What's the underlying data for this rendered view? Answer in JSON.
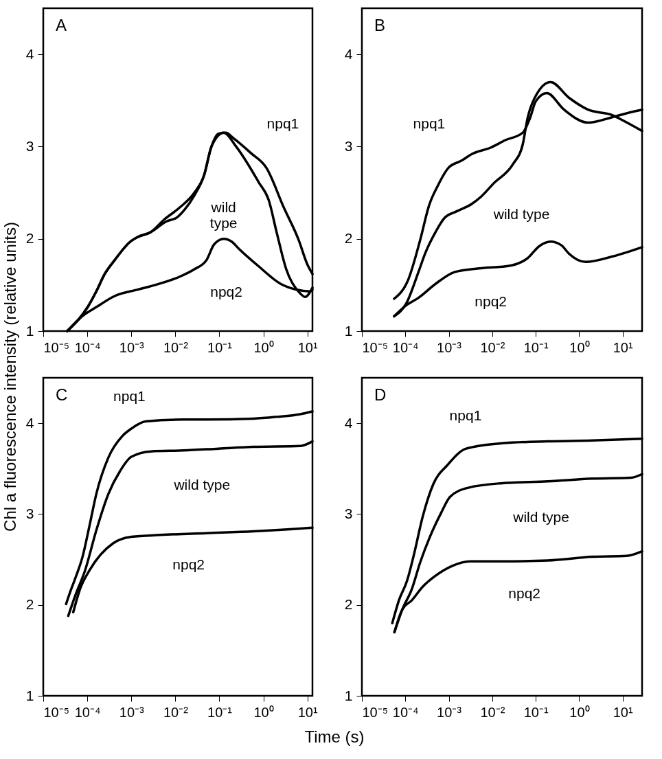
{
  "chart_data": [
    {
      "type": "line",
      "title": "A",
      "ylabel": "Chl a fluorescence intensity (relative units)",
      "log": "x",
      "grid": false,
      "legend": false,
      "xlim": [
        1e-05,
        13
      ],
      "xticks": [
        {
          "value": 1e-05,
          "label": "10⁻⁵"
        },
        {
          "value": 0.0001,
          "label": "10⁻⁴"
        },
        {
          "value": 0.001,
          "label": "10⁻³"
        },
        {
          "value": 0.01,
          "label": "10⁻²"
        },
        {
          "value": 0.1,
          "label": "10⁻¹"
        },
        {
          "value": 1,
          "label": "10⁰"
        },
        {
          "value": 10,
          "label": "10¹"
        }
      ],
      "ylim": [
        1,
        4.5
      ],
      "yticks": [
        1,
        2,
        3,
        4
      ],
      "series": [
        {
          "color": "#000000",
          "x": [
            3.5e-05,
            0.000105,
            0.00016,
            0.00025,
            0.00042,
            0.00095,
            0.0014,
            0.0027,
            0.0056,
            0.0126,
            0.027,
            0.045,
            0.066,
            0.095,
            0.14,
            0.21,
            0.52,
            1.17,
            2.9,
            6.3,
            10,
            13
          ],
          "values": [
            1.0,
            1.27,
            1.43,
            1.62,
            1.77,
            1.97,
            2.02,
            2.07,
            2.21,
            2.34,
            2.5,
            2.69,
            3.0,
            3.14,
            3.15,
            3.09,
            2.93,
            2.77,
            2.34,
            1.99,
            1.72,
            1.62
          ]
        },
        {
          "color": "#000000",
          "x": [
            3.5e-05,
            0.000105,
            0.00016,
            0.00025,
            0.00042,
            0.00095,
            0.0014,
            0.0027,
            0.0063,
            0.0107,
            0.0158,
            0.027,
            0.045,
            0.066,
            0.126,
            0.24,
            0.79,
            1.32,
            2.0,
            3.3,
            6.8,
            8.9,
            13
          ],
          "values": [
            1.0,
            1.27,
            1.43,
            1.62,
            1.77,
            1.97,
            2.02,
            2.07,
            2.19,
            2.23,
            2.31,
            2.47,
            2.69,
            3.0,
            3.15,
            3.0,
            2.61,
            2.42,
            2.07,
            1.67,
            1.41,
            1.37,
            1.47
          ]
        },
        {
          "color": "#000000",
          "x": [
            3.5e-05,
            8.1e-05,
            0.00016,
            0.00042,
            0.0014,
            0.0035,
            0.0126,
            0.027,
            0.051,
            0.076,
            0.126,
            0.19,
            0.28,
            0.79,
            2.5,
            5.5,
            11.5,
            13
          ],
          "values": [
            1.0,
            1.17,
            1.26,
            1.38,
            1.45,
            1.5,
            1.59,
            1.67,
            1.77,
            1.94,
            2.0,
            1.97,
            1.89,
            1.7,
            1.51,
            1.45,
            1.43,
            1.45
          ]
        }
      ],
      "annotations": [
        "npq1",
        "wild type",
        "npq2"
      ]
    },
    {
      "type": "line",
      "title": "B",
      "log": "x",
      "grid": false,
      "legend": false,
      "xlim": [
        1e-05,
        28
      ],
      "xticks": [
        {
          "value": 1e-05,
          "label": "10⁻⁵"
        },
        {
          "value": 0.0001,
          "label": "10⁻⁴"
        },
        {
          "value": 0.001,
          "label": "10⁻³"
        },
        {
          "value": 0.01,
          "label": "10⁻²"
        },
        {
          "value": 0.1,
          "label": "10⁻¹"
        },
        {
          "value": 1,
          "label": "10⁰"
        },
        {
          "value": 10,
          "label": "10¹"
        }
      ],
      "ylim": [
        1,
        4.5
      ],
      "yticks": [
        1,
        2,
        3,
        4
      ],
      "series": [
        {
          "color": "#000000",
          "x": [
            5.5e-05,
            0.000117,
            0.00022,
            0.00035,
            0.00055,
            0.00098,
            0.002,
            0.0034,
            0.0093,
            0.02,
            0.05,
            0.074,
            0.1,
            0.18,
            0.45,
            1.6,
            5.9,
            14.5,
            28
          ],
          "values": [
            1.35,
            1.56,
            1.99,
            2.36,
            2.57,
            2.77,
            2.85,
            2.92,
            2.99,
            3.07,
            3.15,
            3.31,
            3.49,
            3.58,
            3.4,
            3.26,
            3.32,
            3.37,
            3.4
          ]
        },
        {
          "color": "#000000",
          "x": [
            5.5e-05,
            0.000105,
            0.0002,
            0.00029,
            0.00049,
            0.00081,
            0.00155,
            0.0034,
            0.0056,
            0.0107,
            0.03,
            0.05,
            0.065,
            0.095,
            0.22,
            0.58,
            1.6,
            5.9,
            12.6,
            28
          ],
          "values": [
            1.16,
            1.3,
            1.64,
            1.85,
            2.07,
            2.23,
            2.3,
            2.38,
            2.46,
            2.6,
            2.81,
            3.02,
            3.31,
            3.53,
            3.7,
            3.53,
            3.4,
            3.34,
            3.26,
            3.17
          ]
        },
        {
          "color": "#000000",
          "x": [
            5.5e-05,
            0.000105,
            0.0002,
            0.00049,
            0.00135,
            0.0049,
            0.026,
            0.065,
            0.12,
            0.22,
            0.39,
            0.58,
            1.41,
            5.9,
            28
          ],
          "values": [
            1.16,
            1.28,
            1.36,
            1.51,
            1.64,
            1.68,
            1.71,
            1.79,
            1.92,
            1.97,
            1.93,
            1.84,
            1.75,
            1.81,
            1.91
          ]
        }
      ],
      "annotations": [
        "npq1",
        "wild type",
        "npq2"
      ]
    },
    {
      "type": "line",
      "title": "C",
      "xlabel": "Time (s)",
      "log": "x",
      "grid": false,
      "legend": false,
      "xlim": [
        1e-05,
        13
      ],
      "xticks": [
        {
          "value": 1e-05,
          "label": "10⁻⁵"
        },
        {
          "value": 0.0001,
          "label": "10⁻⁴"
        },
        {
          "value": 0.001,
          "label": "10⁻³"
        },
        {
          "value": 0.01,
          "label": "10⁻²"
        },
        {
          "value": 0.1,
          "label": "10⁻¹"
        },
        {
          "value": 1,
          "label": "10⁰"
        },
        {
          "value": 10,
          "label": "10¹"
        }
      ],
      "ylim": [
        1,
        4.5
      ],
      "yticks": [
        1,
        2,
        3,
        4
      ],
      "series": [
        {
          "color": "#000000",
          "x": [
            3.3e-05,
            4e-05,
            5.4e-05,
            7.8e-05,
            0.000112,
            0.00016,
            0.0003,
            0.00063,
            0.001,
            0.0021,
            0.015,
            0.051,
            0.6,
            2.0,
            6.9,
            13
          ],
          "values": [
            2.01,
            2.13,
            2.3,
            2.53,
            2.87,
            3.22,
            3.62,
            3.86,
            3.94,
            4.02,
            4.04,
            4.04,
            4.05,
            4.07,
            4.1,
            4.13
          ]
        },
        {
          "color": "#000000",
          "x": [
            3.7e-05,
            5.4e-05,
            8.9e-05,
            0.00016,
            0.0003,
            0.00055,
            0.001,
            0.0028,
            0.015,
            0.095,
            0.6,
            6.9,
            13
          ],
          "values": [
            1.88,
            2.11,
            2.38,
            2.82,
            3.22,
            3.47,
            3.63,
            3.69,
            3.7,
            3.72,
            3.74,
            3.75,
            3.8
          ]
        },
        {
          "color": "#000000",
          "x": [
            4.8e-05,
            6.9e-05,
            0.000112,
            0.00039,
            0.001,
            0.0045,
            0.051,
            0.6,
            6.9,
            13
          ],
          "values": [
            1.92,
            2.18,
            2.38,
            2.68,
            2.75,
            2.77,
            2.79,
            2.81,
            2.84,
            2.85
          ]
        }
      ],
      "annotations": [
        "npq1",
        "wild type",
        "npq2"
      ]
    },
    {
      "type": "line",
      "title": "D",
      "log": "x",
      "grid": false,
      "legend": false,
      "xlim": [
        1e-05,
        28
      ],
      "xticks": [
        {
          "value": 1e-05,
          "label": "10⁻⁵"
        },
        {
          "value": 0.0001,
          "label": "10⁻⁴"
        },
        {
          "value": 0.001,
          "label": "10⁻³"
        },
        {
          "value": 0.01,
          "label": "10⁻²"
        },
        {
          "value": 0.1,
          "label": "10⁻¹"
        },
        {
          "value": 1,
          "label": "10⁰"
        },
        {
          "value": 10,
          "label": "10¹"
        }
      ],
      "ylim": [
        1,
        4.5
      ],
      "yticks": [
        1,
        2,
        3,
        4
      ],
      "series": [
        {
          "color": "#000000",
          "x": [
            5e-05,
            7.1e-05,
            0.00011,
            0.000155,
            0.00025,
            0.00044,
            0.00093,
            0.0025,
            0.017,
            0.19,
            2.0,
            28
          ],
          "values": [
            1.8,
            2.05,
            2.27,
            2.54,
            2.97,
            3.33,
            3.54,
            3.72,
            3.78,
            3.8,
            3.81,
            3.83
          ]
        },
        {
          "color": "#000000",
          "x": [
            5.6e-05,
            8.5e-05,
            0.00014,
            0.00022,
            0.00036,
            0.00066,
            0.00107,
            0.0028,
            0.017,
            0.19,
            2.0,
            15.5,
            28
          ],
          "values": [
            1.7,
            1.95,
            2.17,
            2.47,
            2.74,
            3.01,
            3.19,
            3.29,
            3.34,
            3.36,
            3.39,
            3.4,
            3.44
          ]
        },
        {
          "color": "#000000",
          "x": [
            5.6e-05,
            8.5e-05,
            0.00014,
            0.00025,
            0.00046,
            0.0012,
            0.0031,
            0.017,
            0.19,
            2.0,
            12.3,
            28
          ],
          "values": [
            1.7,
            1.95,
            2.05,
            2.2,
            2.31,
            2.43,
            2.48,
            2.48,
            2.49,
            2.53,
            2.54,
            2.59
          ]
        }
      ],
      "annotations": [
        "npq1",
        "wild type",
        "npq2"
      ]
    }
  ]
}
